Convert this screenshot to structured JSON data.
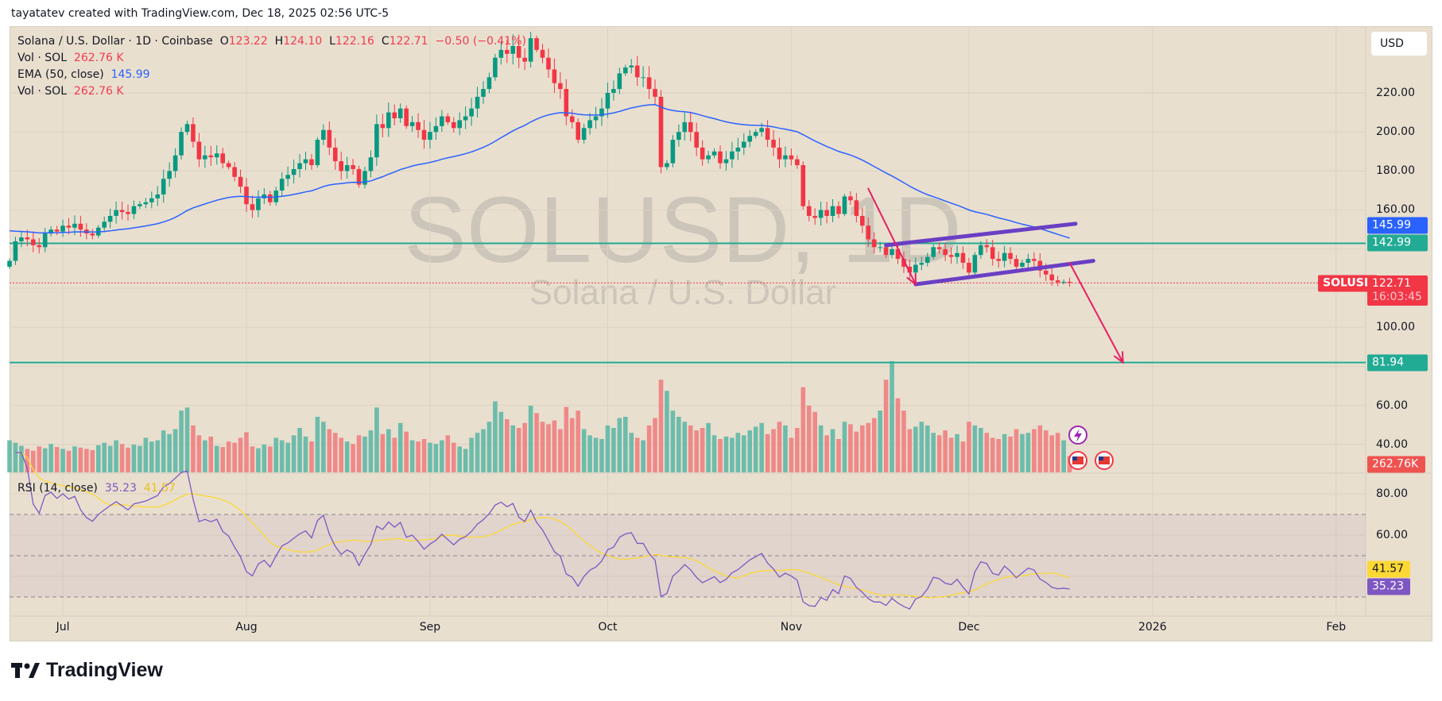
{
  "header": {
    "attribution": "tayatatev created with TradingView.com, Dec 18, 2025 02:56 UTC-5"
  },
  "legend": {
    "symbol": "Solana / U.S. Dollar · 1D · Coinbase",
    "o_label": "O",
    "o": "123.22",
    "h_label": "H",
    "h": "124.10",
    "l_label": "L",
    "l": "122.16",
    "c_label": "C",
    "c": "122.71",
    "change": "−0.50 (−0.41%)",
    "vol_label": "Vol · SOL",
    "vol": "262.76 K",
    "ema_label": "EMA (50, close)",
    "ema": "145.99",
    "vol2_label": "Vol · SOL",
    "vol2": "262.76 K",
    "rsi_label": "RSI (14, close)",
    "rsi": "35.23",
    "rsi_ma": "41.57"
  },
  "watermark": {
    "symbol": "SOLUSD, 1D",
    "name": "Solana / U.S. Dollar"
  },
  "currency_button": "USD",
  "price_axis": [
    "220.00",
    "200.00",
    "180.00",
    "160.00",
    "100.00",
    "60.00",
    "40.00"
  ],
  "rsi_axis": [
    "80.00",
    "60.00"
  ],
  "tags": {
    "ema": "145.99",
    "level_high": "142.99",
    "symbol_tag": "SOLUSD",
    "last_price": "122.71",
    "countdown": "16:03:45",
    "level_low": "81.94",
    "volume": "262.76K",
    "rsi_ma": "41.57",
    "rsi": "35.23"
  },
  "time_axis": [
    {
      "label": "Jul",
      "day": 9
    },
    {
      "label": "Aug",
      "day": 40
    },
    {
      "label": "Sep",
      "day": 71
    },
    {
      "label": "Oct",
      "day": 101
    },
    {
      "label": "Nov",
      "day": 132
    },
    {
      "label": "Dec",
      "day": 162
    },
    {
      "label": "2026",
      "day": 193
    },
    {
      "label": "Feb",
      "day": 224
    }
  ],
  "colors": {
    "up": "#089981",
    "down": "#f23645",
    "ema": "#2962ff",
    "level": "#22ab94",
    "channel": "#6a3fc4",
    "arrow": "#e91e63",
    "rsi": "#7e57c2",
    "rsi_ma": "#fdd835"
  },
  "brand": "TradingView",
  "chart_data": {
    "type": "candlestick",
    "title": "Solana / U.S. Dollar · 1D · Coinbase",
    "start_date": "2025-06-22",
    "ylim": [
      70,
      258
    ],
    "horizontal_levels": [
      142.99,
      81.94
    ],
    "last_open": 123.22,
    "closes": [
      134,
      144,
      146,
      145,
      142,
      141,
      148,
      150,
      149,
      152,
      151,
      153,
      150,
      148,
      147,
      151,
      154,
      157,
      160,
      159,
      158,
      162,
      163,
      164,
      166,
      168,
      176,
      180,
      188,
      200,
      204,
      195,
      186,
      188,
      187,
      189,
      184,
      182,
      177,
      172,
      163,
      160,
      166,
      168,
      164,
      170,
      176,
      178,
      181,
      184,
      186,
      183,
      196,
      201,
      192,
      185,
      180,
      183,
      181,
      173,
      180,
      187,
      204,
      202,
      210,
      207,
      212,
      203,
      205,
      201,
      196,
      200,
      203,
      208,
      205,
      202,
      206,
      208,
      212,
      218,
      222,
      228,
      238,
      242,
      240,
      244,
      238,
      236,
      248,
      242,
      238,
      232,
      225,
      222,
      208,
      205,
      196,
      202,
      206,
      208,
      212,
      220,
      222,
      230,
      233,
      234,
      228,
      228,
      222,
      218,
      182,
      184,
      196,
      200,
      205,
      200,
      192,
      186,
      188,
      190,
      184,
      186,
      190,
      192,
      195,
      198,
      200,
      202,
      196,
      192,
      186,
      188,
      186,
      183,
      162,
      157,
      156,
      160,
      157,
      162,
      158,
      167,
      165,
      157,
      152,
      145,
      141,
      141,
      137,
      140,
      135,
      131,
      128,
      132,
      133,
      136,
      141,
      140,
      137,
      136,
      138,
      133,
      128,
      137,
      142,
      141,
      135,
      134,
      138,
      135,
      131,
      133,
      135,
      134,
      129,
      127,
      124,
      123,
      123.22,
      122.71
    ],
    "volume_k": [
      520,
      480,
      430,
      380,
      350,
      420,
      390,
      460,
      410,
      380,
      350,
      420,
      400,
      380,
      360,
      440,
      480,
      430,
      520,
      460,
      400,
      450,
      430,
      560,
      500,
      520,
      680,
      620,
      700,
      1000,
      1050,
      760,
      600,
      520,
      580,
      430,
      410,
      500,
      480,
      560,
      650,
      420,
      390,
      450,
      420,
      560,
      520,
      480,
      600,
      720,
      580,
      500,
      900,
      820,
      700,
      640,
      560,
      500,
      460,
      600,
      580,
      680,
      1050,
      620,
      700,
      560,
      800,
      660,
      520,
      500,
      540,
      480,
      460,
      520,
      600,
      480,
      420,
      380,
      560,
      640,
      700,
      820,
      1150,
      980,
      860,
      760,
      720,
      800,
      1080,
      960,
      820,
      780,
      840,
      700,
      1060,
      880,
      1000,
      700,
      600,
      560,
      540,
      760,
      720,
      880,
      900,
      640,
      560,
      520,
      760,
      880,
      1500,
      1320,
      1000,
      900,
      820,
      760,
      680,
      720,
      800,
      600,
      540,
      580,
      560,
      640,
      600,
      680,
      740,
      800,
      620,
      700,
      820,
      760,
      560,
      720,
      1380,
      1080,
      980,
      760,
      600,
      700,
      540,
      820,
      780,
      660,
      760,
      800,
      880,
      1000,
      1500,
      1800,
      1200,
      1000,
      700,
      740,
      820,
      760,
      640,
      600,
      680,
      560,
      620,
      500,
      820,
      760,
      720,
      640,
      560,
      540,
      620,
      580,
      700,
      620,
      640,
      700,
      760,
      680,
      600,
      640,
      520,
      262.76
    ],
    "ema_period": 50,
    "rsi_period": 14,
    "rsi_levels": [
      70,
      50,
      30
    ],
    "trendlines": [
      {
        "name": "channel-upper",
        "from": {
          "day": 148,
          "price": 142
        },
        "to": {
          "day": 180,
          "price": 153
        }
      },
      {
        "name": "channel-lower",
        "from": {
          "day": 153,
          "price": 122
        },
        "to": {
          "day": 183,
          "price": 134
        }
      },
      {
        "name": "arrow-1",
        "from": {
          "day": 145,
          "price": 171
        },
        "to": {
          "day": 153,
          "price": 122
        }
      },
      {
        "name": "arrow-2",
        "from": {
          "day": 179,
          "price": 133
        },
        "to": {
          "day": 188,
          "price": 82
        }
      }
    ]
  }
}
